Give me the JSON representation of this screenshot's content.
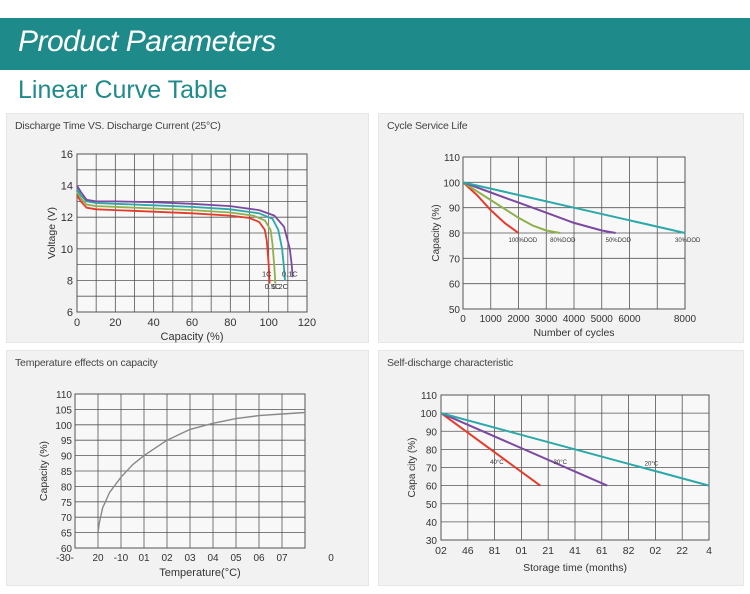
{
  "header": {
    "title": "Product Parameters",
    "subtitle": "Linear Curve Table"
  },
  "colors": {
    "accent": "#1f8a8a",
    "grid": "#555555"
  },
  "chart_data": [
    {
      "type": "line",
      "title": "Discharge Time VS. Discharge Current (25°C)",
      "xlabel": "Capacity (%)",
      "ylabel": "Voltage (V)",
      "xlim": [
        0,
        120
      ],
      "ylim": [
        6,
        16
      ],
      "x_ticks": [
        "0",
        "20",
        "40",
        "60",
        "80",
        "100",
        "120"
      ],
      "y_ticks": [
        "6",
        "8",
        "10",
        "12",
        "14",
        "16"
      ],
      "grid": true,
      "series": [
        {
          "name": "1C",
          "color": "#e63a2a",
          "label_x": 99,
          "label_y": 8.25,
          "x": [
            0,
            2,
            5,
            10,
            20,
            40,
            60,
            80,
            90,
            95,
            98,
            99,
            100,
            100.5
          ],
          "y": [
            13.4,
            13.0,
            12.6,
            12.5,
            12.45,
            12.35,
            12.25,
            12.1,
            11.95,
            11.7,
            11.2,
            10.5,
            9.0,
            7.8
          ]
        },
        {
          "name": "0.5C",
          "color": "#8fb04a",
          "label_x": 102,
          "label_y": 7.45,
          "x": [
            0,
            2,
            5,
            10,
            20,
            40,
            60,
            80,
            92,
            98,
            101,
            102,
            103,
            103.5
          ],
          "y": [
            13.6,
            13.2,
            12.8,
            12.7,
            12.65,
            12.55,
            12.45,
            12.3,
            12.1,
            11.8,
            11.2,
            10.3,
            8.8,
            7.8
          ]
        },
        {
          "name": "0.2C",
          "color": "#2ba8a8",
          "label_x": 106,
          "label_y": 7.45,
          "x": [
            0,
            2,
            5,
            10,
            20,
            40,
            60,
            80,
            95,
            102,
            105,
            107,
            108,
            108.5
          ],
          "y": [
            13.8,
            13.4,
            13.0,
            12.9,
            12.85,
            12.75,
            12.65,
            12.5,
            12.25,
            11.9,
            11.2,
            10.0,
            8.8,
            8.0
          ]
        },
        {
          "name": "0.1C",
          "color": "#7b4aa0",
          "label_x": 111,
          "label_y": 8.25,
          "x": [
            0,
            2,
            5,
            10,
            20,
            40,
            60,
            80,
            95,
            103,
            108,
            111,
            112,
            112.5
          ],
          "y": [
            14.0,
            13.6,
            13.1,
            13.0,
            13.0,
            12.95,
            12.85,
            12.7,
            12.45,
            12.1,
            11.4,
            10.0,
            9.0,
            8.2
          ]
        }
      ]
    },
    {
      "type": "line",
      "title": "Cycle Service Life",
      "xlabel": "Number of cycles",
      "ylabel": "Capacity (%)",
      "x_ticks": [
        "0",
        "1000",
        "2000",
        "3000",
        "4000",
        "5000",
        "6000",
        "8000"
      ],
      "y_ticks": [
        "50",
        "60",
        "70",
        "80",
        "90",
        "100",
        "110"
      ],
      "ylim": [
        50,
        110
      ],
      "grid": true,
      "series": [
        {
          "name": "100%DOD",
          "color": "#e63a2a",
          "x": [
            0,
            500,
            1000,
            1500,
            2000
          ],
          "y": [
            100,
            95,
            89,
            84,
            80
          ]
        },
        {
          "name": "80%DOD",
          "color": "#8fb04a",
          "x": [
            0,
            1000,
            2000,
            2500,
            3000,
            3500
          ],
          "y": [
            100,
            93,
            86,
            83,
            81,
            80
          ]
        },
        {
          "name": "50%DOD",
          "color": "#7b4aa0",
          "x": [
            0,
            1000,
            2000,
            3000,
            4000,
            5000,
            5500
          ],
          "y": [
            100,
            96,
            92,
            88,
            84,
            81,
            80
          ]
        },
        {
          "name": "30%DOD",
          "color": "#2ba8a8",
          "x": [
            0,
            2000,
            4000,
            6000,
            8000
          ],
          "y": [
            100,
            95,
            90,
            85,
            80
          ]
        }
      ]
    },
    {
      "type": "line",
      "title": "Temperature effects on capacity",
      "xlabel": "Temperature(°C)",
      "ylabel": "Capacity (%)",
      "x_ticks": [
        "-30-",
        "20",
        "-10",
        "01",
        "02",
        "03",
        "04",
        "05",
        "06",
        "07",
        "0"
      ],
      "y_ticks": [
        "60",
        "65",
        "70",
        "75",
        "80",
        "85",
        "90",
        "95",
        "100",
        "105",
        "110"
      ],
      "ylim": [
        60,
        110
      ],
      "grid": true,
      "series": [
        {
          "color": "#888888",
          "x": [
            -20,
            -19.5,
            -18,
            -15,
            -10,
            -5,
            0,
            10,
            20,
            30,
            40,
            50,
            60,
            70
          ],
          "y": [
            65,
            68,
            73,
            78,
            83,
            87,
            90,
            95,
            98.5,
            100.5,
            102,
            103,
            103.5,
            104
          ]
        }
      ]
    },
    {
      "type": "line",
      "title": "Self-discharge characteristic",
      "xlabel": "Storage time (months)",
      "ylabel": "Capa city (%)",
      "x_ticks": [
        "02",
        "46",
        "81",
        "01",
        "21",
        "41",
        "61",
        "82",
        "02",
        "22",
        "4"
      ],
      "y_ticks": [
        "30",
        "40",
        "50",
        "60",
        "70",
        "80",
        "90",
        "100",
        "110"
      ],
      "ylim": [
        30,
        110
      ],
      "grid": true,
      "series": [
        {
          "name": "40°C",
          "color": "#e63a2a",
          "x": [
            0,
            9
          ],
          "y": [
            100,
            60
          ]
        },
        {
          "name": "30°C",
          "color": "#7b4aa0",
          "x": [
            0,
            15
          ],
          "y": [
            100,
            60
          ]
        },
        {
          "name": "20°C",
          "color": "#2ba8a8",
          "x": [
            0,
            24
          ],
          "y": [
            100,
            60
          ]
        }
      ]
    }
  ]
}
